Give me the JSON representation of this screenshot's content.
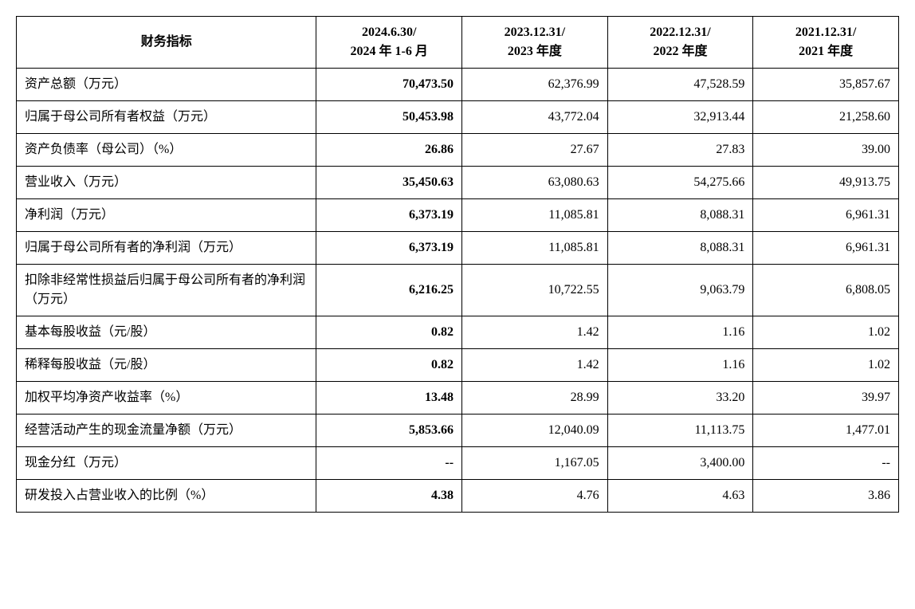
{
  "table": {
    "columns": [
      {
        "label": "财务指标",
        "align": "center",
        "multiline": false
      },
      {
        "label": "2024.6.30/\n2024 年 1-6 月",
        "align": "center"
      },
      {
        "label": "2023.12.31/\n2023 年度",
        "align": "center"
      },
      {
        "label": "2022.12.31/\n2022 年度",
        "align": "center"
      },
      {
        "label": "2021.12.31/\n2021 年度",
        "align": "center"
      }
    ],
    "rows": [
      {
        "label": "资产总额（万元）",
        "values": [
          "70,473.50",
          "62,376.99",
          "47,528.59",
          "35,857.67"
        ]
      },
      {
        "label": "归属于母公司所有者权益（万元）",
        "values": [
          "50,453.98",
          "43,772.04",
          "32,913.44",
          "21,258.60"
        ]
      },
      {
        "label": "资产负债率（母公司）（%）",
        "values": [
          "26.86",
          "27.67",
          "27.83",
          "39.00"
        ]
      },
      {
        "label": "营业收入（万元）",
        "values": [
          "35,450.63",
          "63,080.63",
          "54,275.66",
          "49,913.75"
        ]
      },
      {
        "label": "净利润（万元）",
        "values": [
          "6,373.19",
          "11,085.81",
          "8,088.31",
          "6,961.31"
        ]
      },
      {
        "label": "归属于母公司所有者的净利润（万元）",
        "values": [
          "6,373.19",
          "11,085.81",
          "8,088.31",
          "6,961.31"
        ]
      },
      {
        "label": "扣除非经常性损益后归属于母公司所有者的净利润（万元）",
        "values": [
          "6,216.25",
          "10,722.55",
          "9,063.79",
          "6,808.05"
        ]
      },
      {
        "label": "基本每股收益（元/股）",
        "values": [
          "0.82",
          "1.42",
          "1.16",
          "1.02"
        ]
      },
      {
        "label": "稀释每股收益（元/股）",
        "values": [
          "0.82",
          "1.42",
          "1.16",
          "1.02"
        ]
      },
      {
        "label": "加权平均净资产收益率（%）",
        "values": [
          "13.48",
          "28.99",
          "33.20",
          "39.97"
        ]
      },
      {
        "label": "经营活动产生的现金流量净额（万元）",
        "values": [
          "5,853.66",
          "12,040.09",
          "11,113.75",
          "1,477.01"
        ]
      },
      {
        "label": "现金分红（万元）",
        "values": [
          "--",
          "1,167.05",
          "3,400.00",
          "--"
        ]
      },
      {
        "label": "研发投入占营业收入的比例（%）",
        "values": [
          "4.38",
          "4.76",
          "4.63",
          "3.86"
        ]
      }
    ],
    "styling": {
      "border_color": "#000000",
      "background_color": "#ffffff",
      "font_family": "SimSun",
      "header_fontsize": 16,
      "cell_fontsize": 16,
      "header_fontweight": "bold",
      "first_data_col_bold": true,
      "label_align": "left",
      "value_align": "right",
      "header_align": "center",
      "col_widths_pct": [
        34,
        16.5,
        16.5,
        16.5,
        16.5
      ]
    }
  }
}
